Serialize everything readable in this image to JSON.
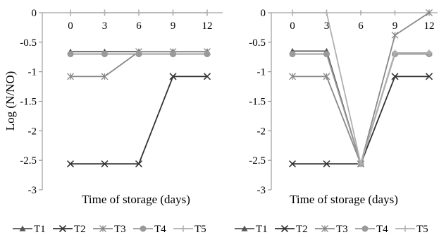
{
  "chart_data": [
    {
      "type": "line",
      "categories": [
        "0",
        "3",
        "6",
        "9",
        "12"
      ],
      "ylabel": "Log (N/NO)",
      "xlabel": "Time of storage (days)",
      "ylim": [
        -3,
        0
      ],
      "yticks": [
        "0",
        "-0.5",
        "-1",
        "-1.5",
        "-2",
        "-2.5",
        "-3"
      ],
      "series": [
        {
          "name": "T1",
          "marker": "triangle",
          "color": "#555555",
          "values": [
            -0.66,
            -0.66,
            -0.66,
            -0.66,
            -0.66
          ]
        },
        {
          "name": "T2",
          "marker": "x",
          "color": "#333333",
          "values": [
            -2.56,
            -2.56,
            -2.56,
            -1.08,
            -1.08
          ]
        },
        {
          "name": "T3",
          "marker": "star",
          "color": "#888888",
          "values": [
            -1.08,
            -1.08,
            -0.66,
            -0.66,
            -0.66
          ]
        },
        {
          "name": "T4",
          "marker": "circle",
          "color": "#9a9a9a",
          "values": [
            -0.7,
            -0.7,
            -0.7,
            -0.7,
            -0.7
          ]
        },
        {
          "name": "T5",
          "marker": "plus",
          "color": "#b0b0b0",
          "values": [
            0,
            0,
            0,
            0,
            0
          ]
        }
      ]
    },
    {
      "type": "line",
      "categories": [
        "0",
        "3",
        "6",
        "9",
        "12"
      ],
      "ylabel": "",
      "xlabel": "Time of storage (days)",
      "ylim": [
        -3,
        0
      ],
      "yticks": [
        "0",
        "-0.5",
        "-1",
        "-1.5",
        "-2",
        "-2.5",
        "-3"
      ],
      "series": [
        {
          "name": "T1",
          "marker": "triangle",
          "color": "#555555",
          "values": [
            -0.65,
            -0.65,
            -2.56,
            -0.68,
            -0.68
          ]
        },
        {
          "name": "T2",
          "marker": "x",
          "color": "#333333",
          "values": [
            -2.56,
            -2.56,
            -2.56,
            -1.08,
            -1.08
          ]
        },
        {
          "name": "T3",
          "marker": "star",
          "color": "#888888",
          "values": [
            -1.08,
            -1.08,
            -2.56,
            -0.38,
            0
          ]
        },
        {
          "name": "T4",
          "marker": "circle",
          "color": "#9a9a9a",
          "values": [
            -0.7,
            -0.7,
            -2.56,
            -0.7,
            -0.7
          ]
        },
        {
          "name": "T5",
          "marker": "plus",
          "color": "#b0b0b0",
          "values": [
            0,
            0,
            -2.56,
            -0.68,
            -0.68
          ]
        }
      ]
    }
  ]
}
